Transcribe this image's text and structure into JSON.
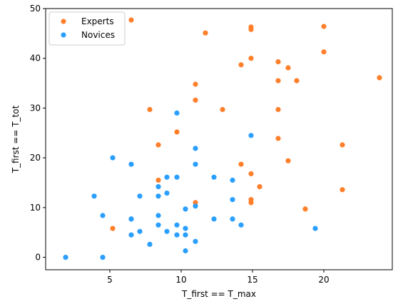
{
  "chart_data": {
    "type": "scatter",
    "xlabel": "T_first == T_max",
    "ylabel": "T_first == T_tot",
    "xlim": [
      0.5,
      24.8
    ],
    "ylim": [
      -2.5,
      50
    ],
    "xticks": [
      5,
      10,
      15,
      20
    ],
    "yticks": [
      0,
      10,
      20,
      30,
      40,
      50
    ],
    "grid": false,
    "legend_position": "upper-left",
    "series": [
      {
        "name": "Experts",
        "color": "#ff7f2a",
        "points": [
          [
            6.5,
            47.7
          ],
          [
            11.7,
            45.1
          ],
          [
            14.9,
            46.3
          ],
          [
            14.9,
            45.8
          ],
          [
            20.0,
            46.4
          ],
          [
            14.9,
            40.0
          ],
          [
            14.2,
            38.7
          ],
          [
            16.8,
            39.3
          ],
          [
            17.5,
            38.1
          ],
          [
            20.0,
            41.3
          ],
          [
            11.0,
            34.8
          ],
          [
            16.8,
            35.5
          ],
          [
            18.1,
            35.5
          ],
          [
            23.9,
            36.1
          ],
          [
            11.0,
            31.6
          ],
          [
            7.8,
            29.7
          ],
          [
            12.9,
            29.7
          ],
          [
            16.8,
            29.7
          ],
          [
            9.7,
            25.2
          ],
          [
            8.4,
            22.6
          ],
          [
            16.8,
            23.9
          ],
          [
            21.3,
            22.6
          ],
          [
            14.2,
            18.7
          ],
          [
            17.5,
            19.4
          ],
          [
            14.9,
            16.8
          ],
          [
            8.4,
            15.5
          ],
          [
            15.5,
            14.2
          ],
          [
            11.0,
            11.0
          ],
          [
            14.9,
            11.6
          ],
          [
            14.9,
            11.0
          ],
          [
            21.3,
            13.6
          ],
          [
            18.7,
            9.7
          ],
          [
            5.2,
            5.8
          ]
        ]
      },
      {
        "name": "Novices",
        "color": "#2a9fff",
        "points": [
          [
            9.7,
            29.0
          ],
          [
            14.9,
            24.5
          ],
          [
            11.0,
            21.9
          ],
          [
            5.2,
            20.0
          ],
          [
            6.5,
            18.7
          ],
          [
            11.0,
            18.7
          ],
          [
            9.0,
            16.1
          ],
          [
            9.7,
            16.1
          ],
          [
            12.3,
            16.1
          ],
          [
            13.6,
            15.5
          ],
          [
            8.4,
            14.2
          ],
          [
            3.9,
            12.3
          ],
          [
            7.1,
            12.3
          ],
          [
            8.4,
            12.3
          ],
          [
            9.0,
            12.9
          ],
          [
            13.6,
            11.6
          ],
          [
            11.0,
            10.3
          ],
          [
            10.3,
            9.7
          ],
          [
            4.5,
            8.4
          ],
          [
            8.4,
            8.4
          ],
          [
            6.5,
            7.7
          ],
          [
            6.5,
            7.7
          ],
          [
            12.3,
            7.7
          ],
          [
            13.6,
            7.7
          ],
          [
            8.4,
            6.5
          ],
          [
            9.7,
            6.5
          ],
          [
            14.2,
            6.5
          ],
          [
            10.3,
            5.8
          ],
          [
            19.4,
            5.8
          ],
          [
            7.1,
            5.2
          ],
          [
            9.0,
            5.2
          ],
          [
            6.5,
            4.5
          ],
          [
            9.7,
            4.5
          ],
          [
            10.3,
            4.5
          ],
          [
            11.0,
            3.2
          ],
          [
            7.8,
            2.6
          ],
          [
            10.3,
            1.3
          ],
          [
            1.9,
            0.0
          ],
          [
            4.5,
            0.0
          ]
        ]
      }
    ]
  }
}
